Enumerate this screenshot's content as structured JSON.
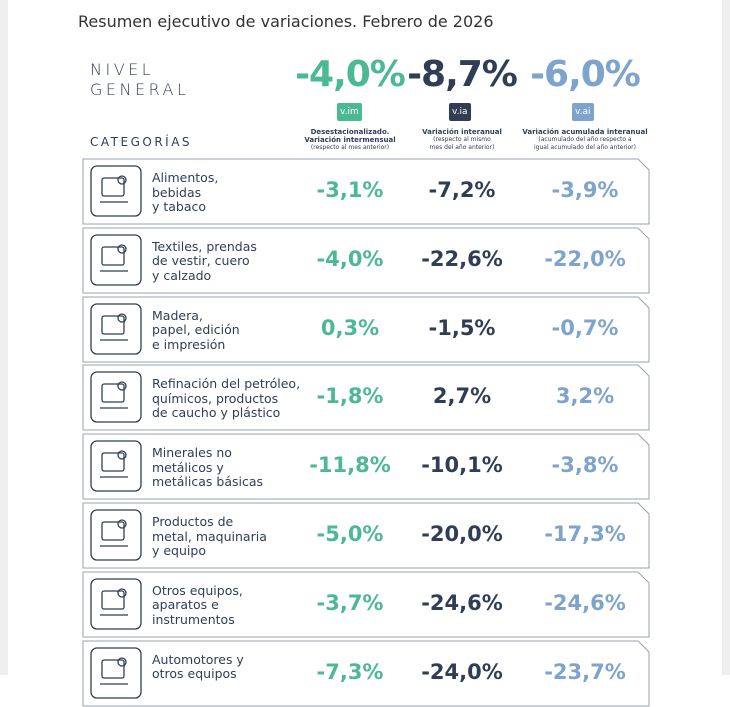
{
  "subtitle": "Resumen ejecutivo de variaciones. Febrero de 2026",
  "general": {
    "label": [
      "NIVEL",
      "GENERAL"
    ],
    "values": [
      "-4,0%",
      "-8,7%",
      "-6,0%"
    ]
  },
  "columns": [
    {
      "badge": "v.im",
      "title": [
        "Desestacionalizado.",
        "Variación intermensual"
      ],
      "note": [
        "(respecto al mes anterior)"
      ]
    },
    {
      "badge": "v.ia",
      "title": [
        "Variación interanual"
      ],
      "note": [
        "(respecto al mismo",
        "mes del año anterior)"
      ]
    },
    {
      "badge": "v.ai",
      "title": [
        "Variación acumulada interanual"
      ],
      "note": [
        "(acumulado del año respecto a",
        "igual acumulado del año anterior)"
      ]
    }
  ],
  "categories_title": "CATEGORÍAS",
  "rows": [
    {
      "label": [
        "Alimentos,",
        "bebidas",
        "y tabaco"
      ],
      "values": [
        "-3,1%",
        "-7,2%",
        "-3,9%"
      ]
    },
    {
      "label": [
        "Textiles, prendas",
        "de vestir, cuero",
        "y calzado"
      ],
      "values": [
        "-4,0%",
        "-22,6%",
        "-22,0%"
      ]
    },
    {
      "label": [
        "Madera,",
        "papel, edición",
        "e impresión"
      ],
      "values": [
        "0,3%",
        "-1,5%",
        "-0,7%"
      ]
    },
    {
      "label": [
        "Refinación del petróleo,",
        "químicos, productos",
        "de caucho y plástico"
      ],
      "values": [
        "-1,8%",
        "2,7%",
        "3,2%"
      ]
    },
    {
      "label": [
        "Minerales no",
        "metálicos y",
        "metálicas básicas"
      ],
      "values": [
        "-11,8%",
        "-10,1%",
        "-3,8%"
      ]
    },
    {
      "label": [
        "Productos de",
        "metal, maquinaria",
        "y equipo"
      ],
      "values": [
        "-5,0%",
        "-20,0%",
        "-17,3%"
      ]
    },
    {
      "label": [
        "Otros equipos,",
        "aparatos e",
        "instrumentos"
      ],
      "values": [
        "-3,7%",
        "-24,6%",
        "-24,6%"
      ]
    },
    {
      "label": [
        "Automotores y",
        "otros equipos"
      ],
      "values": [
        "-7,3%",
        "-24,0%",
        "-23,7%"
      ]
    }
  ]
}
